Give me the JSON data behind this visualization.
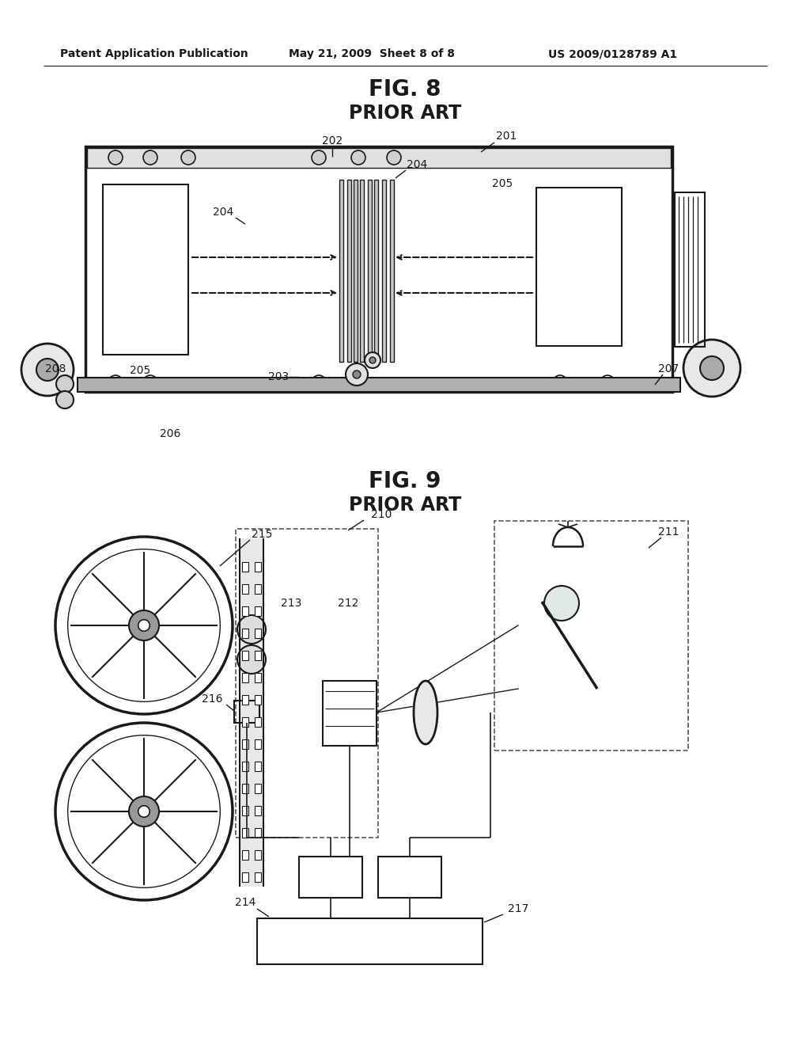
{
  "header_left": "Patent Application Publication",
  "header_mid": "May 21, 2009  Sheet 8 of 8",
  "header_right": "US 2009/0128789 A1",
  "fig8_title": "FIG. 8",
  "fig8_subtitle": "PRIOR ART",
  "fig9_title": "FIG. 9",
  "fig9_subtitle": "PRIOR ART",
  "bg_color": "#ffffff",
  "line_color": "#1a1a1a"
}
